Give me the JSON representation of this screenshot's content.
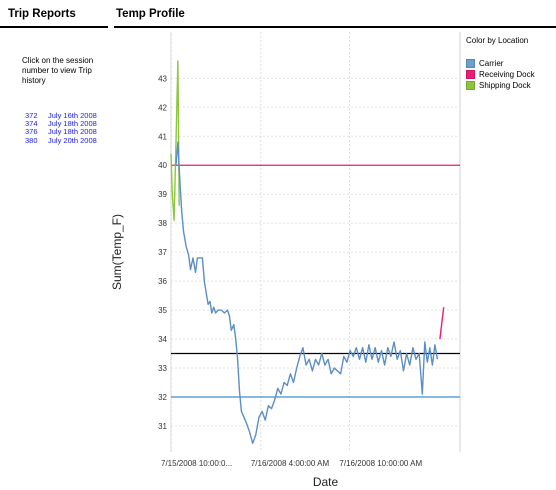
{
  "sidebar": {
    "title": "Trip Reports",
    "intro": "Click on the session number to view Trip history",
    "sessions": [
      {
        "id": "372",
        "date": "July 16th 2008"
      },
      {
        "id": "374",
        "date": "July 18th 2008"
      },
      {
        "id": "376",
        "date": "July 18th 2008"
      },
      {
        "id": "380",
        "date": "July 20th 2008"
      }
    ]
  },
  "panel": {
    "title": "Temp Profile"
  },
  "legend": {
    "title": "Color by Location",
    "items": [
      {
        "label": "Carrier",
        "color": "#6a9fcf"
      },
      {
        "label": "Receiving Dock",
        "color": "#ee1a7a"
      },
      {
        "label": "Shipping Dock",
        "color": "#8cc63e"
      }
    ]
  },
  "chart_data": {
    "type": "line",
    "xlabel": "Date",
    "ylabel": "Sum(Temp_F)",
    "x_tick_labels": [
      "7/15/2008  10:00:0...",
      "7/16/2008 4:00:00 AM",
      "7/16/2008 10:00:00 AM"
    ],
    "y_ticks": [
      31,
      32,
      33,
      34,
      35,
      36,
      37,
      38,
      39,
      40,
      41,
      42,
      43
    ],
    "ylim": [
      30.1,
      44.6
    ],
    "grid": true,
    "reference_lines": [
      {
        "value": 40.0,
        "color": "#ee1a7a"
      },
      {
        "value": 33.5,
        "color": "#000000"
      },
      {
        "value": 32.0,
        "color": "#3a8fd0"
      }
    ],
    "series": [
      {
        "name": "Shipping Dock",
        "color": "#8cc63e",
        "points": [
          [
            0.0,
            40.4
          ],
          [
            0.2,
            39.0
          ],
          [
            0.5,
            38.1
          ],
          [
            0.8,
            40.8
          ],
          [
            1.1,
            43.6
          ],
          [
            1.3,
            38.6
          ]
        ]
      },
      {
        "name": "Carrier",
        "color": "#5b8ec4",
        "points": [
          [
            0.8,
            40.0
          ],
          [
            1.1,
            40.8
          ],
          [
            1.4,
            39.5
          ],
          [
            1.7,
            38.4
          ],
          [
            2.0,
            37.7
          ],
          [
            2.4,
            37.2
          ],
          [
            2.8,
            36.9
          ],
          [
            3.1,
            36.4
          ],
          [
            3.5,
            36.8
          ],
          [
            3.9,
            36.3
          ],
          [
            4.2,
            36.8
          ],
          [
            5.0,
            36.8
          ],
          [
            5.3,
            36.0
          ],
          [
            5.6,
            35.6
          ],
          [
            5.9,
            35.2
          ],
          [
            6.2,
            35.3
          ],
          [
            6.5,
            34.9
          ],
          [
            6.8,
            35.1
          ],
          [
            7.1,
            34.9
          ],
          [
            7.5,
            35.0
          ],
          [
            8.0,
            35.0
          ],
          [
            8.5,
            34.9
          ],
          [
            9.0,
            35.0
          ],
          [
            9.3,
            34.8
          ],
          [
            9.6,
            34.3
          ],
          [
            10.0,
            34.5
          ],
          [
            10.3,
            34.0
          ],
          [
            10.6,
            33.3
          ],
          [
            10.9,
            32.2
          ],
          [
            11.2,
            31.5
          ],
          [
            11.6,
            31.3
          ],
          [
            12.0,
            31.1
          ],
          [
            12.5,
            30.8
          ],
          [
            13.0,
            30.4
          ],
          [
            13.5,
            30.7
          ],
          [
            14.0,
            31.3
          ],
          [
            14.5,
            31.5
          ],
          [
            15.0,
            31.2
          ],
          [
            15.5,
            31.7
          ],
          [
            16.0,
            31.6
          ],
          [
            16.5,
            31.9
          ],
          [
            17.0,
            32.3
          ],
          [
            17.5,
            32.1
          ],
          [
            18.0,
            32.5
          ],
          [
            18.5,
            32.4
          ],
          [
            19.0,
            32.8
          ],
          [
            19.5,
            32.5
          ],
          [
            20.0,
            33.0
          ],
          [
            20.5,
            33.4
          ],
          [
            21.0,
            33.7
          ],
          [
            21.5,
            33.1
          ],
          [
            22.0,
            33.3
          ],
          [
            22.5,
            32.9
          ],
          [
            23.0,
            33.3
          ],
          [
            23.5,
            33.1
          ],
          [
            24.0,
            33.5
          ],
          [
            24.5,
            33.1
          ],
          [
            25.0,
            33.3
          ],
          [
            25.5,
            32.8
          ],
          [
            26.0,
            33.0
          ],
          [
            27.0,
            32.8
          ],
          [
            27.5,
            33.4
          ],
          [
            28.0,
            33.2
          ],
          [
            28.5,
            33.6
          ],
          [
            29.0,
            33.4
          ],
          [
            29.5,
            33.7
          ],
          [
            30.0,
            33.3
          ],
          [
            30.5,
            33.7
          ],
          [
            31.0,
            33.2
          ],
          [
            31.5,
            33.8
          ],
          [
            32.0,
            33.3
          ],
          [
            32.5,
            33.7
          ],
          [
            33.0,
            33.2
          ],
          [
            33.5,
            33.6
          ],
          [
            34.0,
            33.1
          ],
          [
            34.5,
            33.7
          ],
          [
            35.0,
            33.4
          ],
          [
            35.5,
            33.9
          ],
          [
            36.0,
            33.3
          ],
          [
            36.5,
            33.6
          ],
          [
            37.0,
            32.9
          ],
          [
            37.5,
            33.5
          ],
          [
            38.0,
            33.1
          ],
          [
            38.5,
            33.7
          ],
          [
            39.0,
            33.3
          ],
          [
            39.5,
            33.5
          ],
          [
            40.0,
            32.1
          ],
          [
            40.4,
            33.9
          ],
          [
            40.8,
            33.2
          ],
          [
            41.2,
            33.7
          ],
          [
            41.6,
            33.1
          ],
          [
            42.0,
            33.8
          ],
          [
            42.4,
            33.3
          ]
        ]
      },
      {
        "name": "Receiving Dock",
        "color": "#ee1a7a",
        "points": [
          [
            42.8,
            34.0
          ],
          [
            43.4,
            35.1
          ]
        ]
      }
    ]
  }
}
